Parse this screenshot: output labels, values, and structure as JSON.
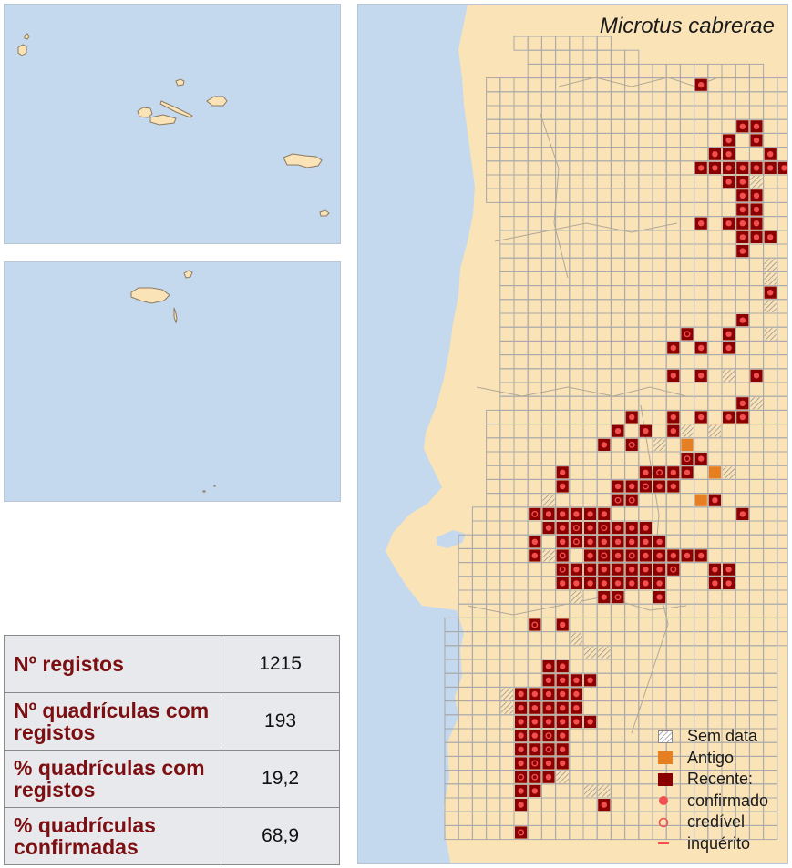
{
  "title": "Microtus cabrerae",
  "colors": {
    "sea": "#c4d8ee",
    "land": "#fbe3b8",
    "grid": "#a9a9a9",
    "recent": "#8b0000",
    "confirmed_dot": "#f25050",
    "old": "#e67e22",
    "label": "#7b0f12"
  },
  "stats": [
    {
      "label": "Nº registos",
      "value": "1215"
    },
    {
      "label": "Nº quadrículas com registos",
      "value": "193"
    },
    {
      "label": "% quadrículas com registos",
      "value": "19,2"
    },
    {
      "label": "% quadrículas confirmadas",
      "value": "68,9"
    }
  ],
  "legend": [
    {
      "label": "Sem data",
      "symbol": "hatched-square"
    },
    {
      "label": "Antigo",
      "symbol": "orange-square"
    },
    {
      "label": "Recente:",
      "symbol": "darkred-square"
    },
    {
      "label": "confirmado",
      "symbol": "filled-dot"
    },
    {
      "label": "credível",
      "symbol": "open-circle"
    },
    {
      "label": "inquérito",
      "symbol": "dash"
    }
  ]
}
